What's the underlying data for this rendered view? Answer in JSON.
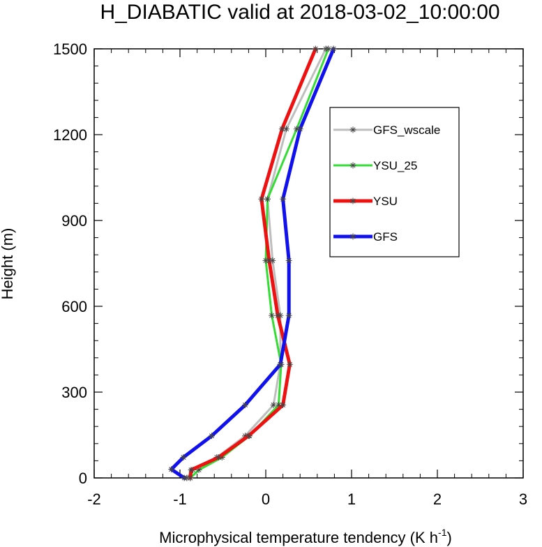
{
  "chart_data": {
    "type": "line",
    "title": "H_DIABATIC valid at 2018-03-02_10:00:00",
    "xlabel": "Microphysical temperature tendency (K h",
    "xlabel_sup": "-1",
    "xlabel_close": ")",
    "ylabel": "Height (m)",
    "xlim": [
      -2,
      3
    ],
    "ylim": [
      0,
      1500
    ],
    "xticks": [
      -2,
      -1,
      0,
      1,
      2,
      3
    ],
    "yticks": [
      0,
      300,
      600,
      900,
      1200,
      1500
    ],
    "xtick_labels": [
      "-2",
      "-1",
      "0",
      "1",
      "2",
      "3"
    ],
    "ytick_labels": [
      "0",
      "300",
      "600",
      "900",
      "1200",
      "1500"
    ],
    "legend_position": "upper-right",
    "marker": "asterisk",
    "series": [
      {
        "name": "GFS_wscale",
        "color": "#bebebe",
        "points": [
          [
            -0.92,
            0
          ],
          [
            -0.85,
            28
          ],
          [
            -0.57,
            72
          ],
          [
            -0.24,
            147
          ],
          [
            0.09,
            255
          ],
          [
            0.17,
            397
          ],
          [
            0.17,
            568
          ],
          [
            0.08,
            760
          ],
          [
            0.02,
            975
          ],
          [
            0.24,
            1220
          ],
          [
            0.7,
            1500
          ]
        ]
      },
      {
        "name": "YSU_25",
        "color": "#33dd33",
        "points": [
          [
            -0.88,
            0
          ],
          [
            -0.78,
            28
          ],
          [
            -0.51,
            72
          ],
          [
            -0.19,
            147
          ],
          [
            0.15,
            255
          ],
          [
            0.18,
            397
          ],
          [
            0.07,
            568
          ],
          [
            0.0,
            760
          ],
          [
            0.02,
            975
          ],
          [
            0.36,
            1220
          ],
          [
            0.73,
            1500
          ]
        ]
      },
      {
        "name": "YSU",
        "color": "#ee1111",
        "points": [
          [
            -0.88,
            0
          ],
          [
            -0.87,
            28
          ],
          [
            -0.55,
            72
          ],
          [
            -0.2,
            147
          ],
          [
            0.2,
            255
          ],
          [
            0.28,
            397
          ],
          [
            0.14,
            568
          ],
          [
            0.04,
            760
          ],
          [
            -0.05,
            975
          ],
          [
            0.19,
            1220
          ],
          [
            0.58,
            1500
          ]
        ]
      },
      {
        "name": "GFS",
        "color": "#1111ee",
        "points": [
          [
            -0.95,
            0
          ],
          [
            -1.1,
            30
          ],
          [
            -0.96,
            72
          ],
          [
            -0.63,
            147
          ],
          [
            -0.24,
            255
          ],
          [
            0.17,
            397
          ],
          [
            0.27,
            568
          ],
          [
            0.27,
            760
          ],
          [
            0.2,
            975
          ],
          [
            0.4,
            1220
          ],
          [
            0.79,
            1500
          ]
        ]
      }
    ]
  }
}
